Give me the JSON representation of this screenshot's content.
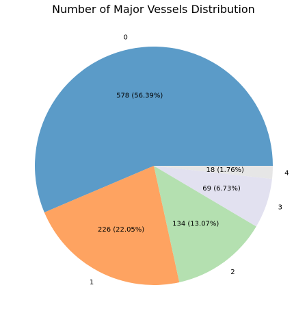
{
  "chart_data": {
    "type": "pie",
    "title": "Number of Major Vessels Distribution",
    "categories": [
      "0",
      "1",
      "2",
      "3",
      "4"
    ],
    "values": [
      578,
      226,
      134,
      69,
      18
    ],
    "percentages": [
      "56.39%",
      "22.05%",
      "13.07%",
      "6.73%",
      "1.76%"
    ],
    "data_labels": [
      "578 (56.39%)",
      "226 (22.05%)",
      "134 (13.07%)",
      "69 (6.73%)",
      "18 (1.76%)"
    ],
    "colors": [
      "#5b9bc8",
      "#fea361",
      "#b4e0b0",
      "#e2e1f0",
      "#e6e6e6"
    ],
    "start": "3 o'clock",
    "direction": "counterclockwise"
  }
}
